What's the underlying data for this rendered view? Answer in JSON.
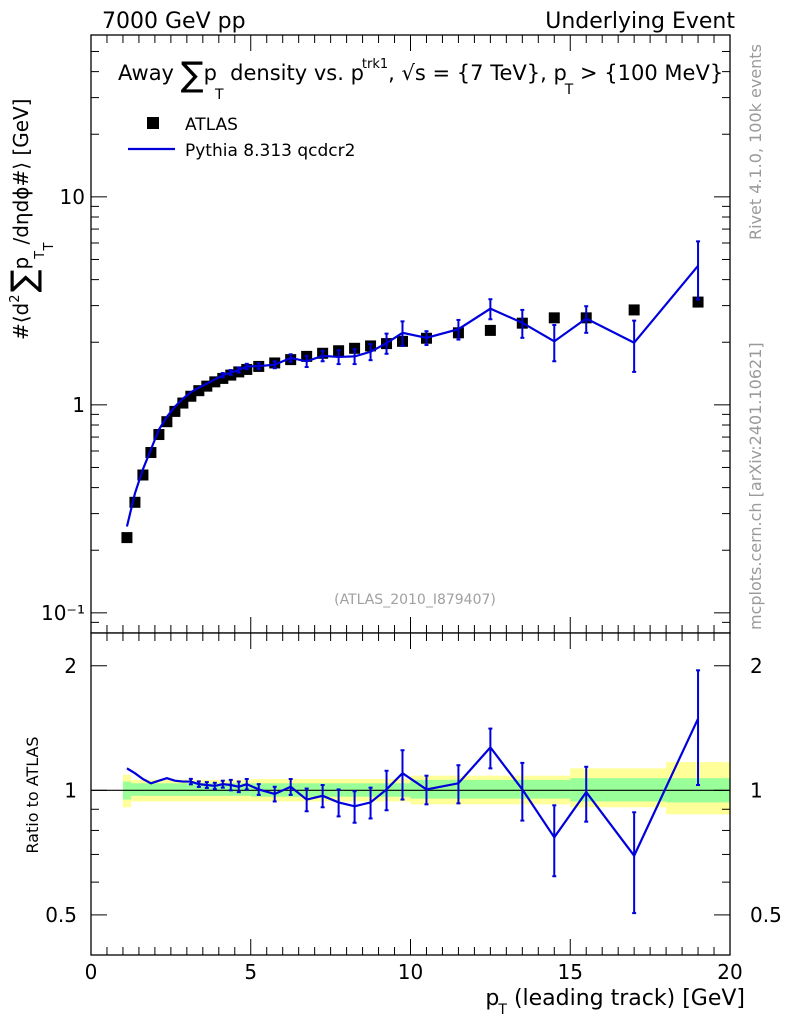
{
  "header": {
    "left": "7000 GeV pp",
    "right": "Underlying Event"
  },
  "side_labels": {
    "rivet": "Rivet 4.1.0,  100k events",
    "mcplots": "mcplots.cern.ch [arXiv:2401.10621]"
  },
  "watermark": "(ATLAS_2010_I879407)",
  "chart_data": [
    {
      "type": "scatter",
      "name": "main",
      "title": "Away ∑ pT density vs. pT^trk1, √s = {7 TeV}, pT > {100 MeV}",
      "title_parts": {
        "a": "Away ",
        "sum": "∑",
        "p": "p",
        "T": "T",
        "b": " density vs. p",
        "trk1": "trk1",
        "c": ", ",
        "sqrt": "√",
        "d": "s = {7 TeV}, p",
        "e": " > {100 MeV}"
      },
      "ylabel": "#⟨d² ∑ pT /dηdϕ#⟩ [GeV]",
      "ylabel_parts": {
        "a": "#⟨d",
        "two": "2",
        "sum": "∑",
        "p": "p",
        "T": "T",
        "b": " /dηdϕ#⟩ [GeV]"
      },
      "yscale": "log",
      "ylim": [
        0.08,
        60
      ],
      "xlim": [
        0,
        20
      ],
      "yticks": [
        {
          "v": 0.1,
          "label": "10⁻¹"
        },
        {
          "v": 1,
          "label": "1"
        },
        {
          "v": 10,
          "label": "10"
        }
      ],
      "legend": {
        "position": "top-left",
        "entries": [
          {
            "label": "ATLAS",
            "marker": "square",
            "color": "#000000"
          },
          {
            "label": "Pythia 8.313 qcdcr2",
            "marker": "line",
            "color": "#0000dd"
          }
        ]
      },
      "series": [
        {
          "name": "ATLAS",
          "color": "#000000",
          "x": [
            1.125,
            1.375,
            1.625,
            1.875,
            2.125,
            2.375,
            2.625,
            2.875,
            3.125,
            3.375,
            3.625,
            3.875,
            4.125,
            4.375,
            4.625,
            4.875,
            5.25,
            5.75,
            6.25,
            6.75,
            7.25,
            7.75,
            8.25,
            8.75,
            9.25,
            9.75,
            10.5,
            11.5,
            12.5,
            13.5,
            14.5,
            15.5,
            17.0,
            19.0
          ],
          "y": [
            0.23,
            0.34,
            0.46,
            0.59,
            0.72,
            0.83,
            0.93,
            1.02,
            1.1,
            1.17,
            1.23,
            1.29,
            1.34,
            1.39,
            1.44,
            1.48,
            1.53,
            1.59,
            1.65,
            1.71,
            1.77,
            1.82,
            1.87,
            1.92,
            1.97,
            2.02,
            2.09,
            2.22,
            2.28,
            2.47,
            2.62,
            2.62,
            2.86,
            3.12
          ]
        },
        {
          "name": "Pythia 8.313 qcdcr2",
          "color": "#0000dd",
          "x": [
            1.125,
            1.375,
            1.625,
            1.875,
            2.125,
            2.375,
            2.625,
            2.875,
            3.125,
            3.375,
            3.625,
            3.875,
            4.125,
            4.375,
            4.625,
            4.875,
            5.25,
            5.75,
            6.25,
            6.75,
            7.25,
            7.75,
            8.25,
            8.75,
            9.25,
            9.75,
            10.5,
            11.5,
            12.5,
            13.5,
            14.5,
            15.5,
            17.0,
            19.0
          ],
          "y": [
            0.26,
            0.375,
            0.49,
            0.61,
            0.76,
            0.875,
            0.98,
            1.07,
            1.15,
            1.21,
            1.265,
            1.325,
            1.39,
            1.43,
            1.47,
            1.53,
            1.535,
            1.56,
            1.68,
            1.62,
            1.72,
            1.7,
            1.71,
            1.8,
            1.98,
            2.22,
            2.1,
            2.31,
            2.9,
            2.48,
            2.02,
            2.6,
            1.99,
            4.66
          ],
          "yerr": [
            0.006,
            0.008,
            0.01,
            0.012,
            0.015,
            0.017,
            0.02,
            0.022,
            0.024,
            0.026,
            0.028,
            0.03,
            0.032,
            0.04,
            0.04,
            0.045,
            0.05,
            0.06,
            0.07,
            0.1,
            0.1,
            0.13,
            0.14,
            0.16,
            0.22,
            0.3,
            0.16,
            0.25,
            0.32,
            0.38,
            0.4,
            0.38,
            0.55,
            1.45
          ]
        }
      ]
    },
    {
      "type": "scatter",
      "name": "ratio",
      "ylabel": "Ratio to ATLAS",
      "xlabel": "pT (leading track) [GeV]",
      "xlabel_parts": {
        "p": "p",
        "T": "T",
        "rest": " (leading track) [GeV]"
      },
      "xlim": [
        0,
        20
      ],
      "ylim": [
        0.4,
        2.4
      ],
      "yscale": "log",
      "xticks": [
        0,
        5,
        10,
        15,
        20
      ],
      "yticks": [
        {
          "v": 0.5,
          "label": "0.5"
        },
        {
          "v": 1,
          "label": "1"
        },
        {
          "v": 2,
          "label": "2"
        }
      ],
      "reference_line": 1,
      "bands": {
        "yellow": {
          "color": "#ffff99",
          "x": [
            1.0,
            1.25,
            5,
            10,
            15,
            18,
            20
          ],
          "lo": [
            0.91,
            0.94,
            0.94,
            0.925,
            0.91,
            0.875,
            0.875
          ],
          "hi": [
            1.09,
            1.06,
            1.065,
            1.085,
            1.13,
            1.17,
            1.17
          ]
        },
        "green": {
          "color": "#99ff99",
          "x": [
            1.0,
            1.25,
            5,
            10,
            15,
            18,
            20
          ],
          "lo": [
            0.95,
            0.97,
            0.965,
            0.955,
            0.94,
            0.935,
            0.935
          ],
          "hi": [
            1.05,
            1.04,
            1.04,
            1.06,
            1.07,
            1.07,
            1.07
          ]
        }
      },
      "series": [
        {
          "name": "Pythia 8.313 qcdcr2 / ATLAS",
          "color": "#0000dd",
          "x": [
            1.125,
            1.375,
            1.625,
            1.875,
            2.125,
            2.375,
            2.625,
            2.875,
            3.125,
            3.375,
            3.625,
            3.875,
            4.125,
            4.375,
            4.625,
            4.875,
            5.25,
            5.75,
            6.25,
            6.75,
            7.25,
            7.75,
            8.25,
            8.75,
            9.25,
            9.75,
            10.5,
            11.5,
            12.5,
            13.5,
            14.5,
            15.5,
            17.0,
            19.0
          ],
          "y": [
            1.13,
            1.1,
            1.065,
            1.04,
            1.055,
            1.07,
            1.055,
            1.05,
            1.05,
            1.035,
            1.03,
            1.025,
            1.035,
            1.03,
            1.02,
            1.035,
            1.005,
            0.98,
            1.02,
            0.95,
            0.97,
            0.935,
            0.915,
            0.935,
            1.005,
            1.1,
            1.005,
            1.04,
            1.27,
            1.005,
            0.77,
            0.99,
            0.695,
            1.49
          ],
          "yerr": [
            0.012,
            0.012,
            0.012,
            0.012,
            0.012,
            0.014,
            0.015,
            0.015,
            0.016,
            0.016,
            0.017,
            0.018,
            0.02,
            0.03,
            0.03,
            0.03,
            0.03,
            0.04,
            0.045,
            0.06,
            0.06,
            0.07,
            0.08,
            0.08,
            0.11,
            0.15,
            0.08,
            0.11,
            0.14,
            0.16,
            0.15,
            0.15,
            0.19,
            0.46
          ]
        }
      ]
    }
  ]
}
